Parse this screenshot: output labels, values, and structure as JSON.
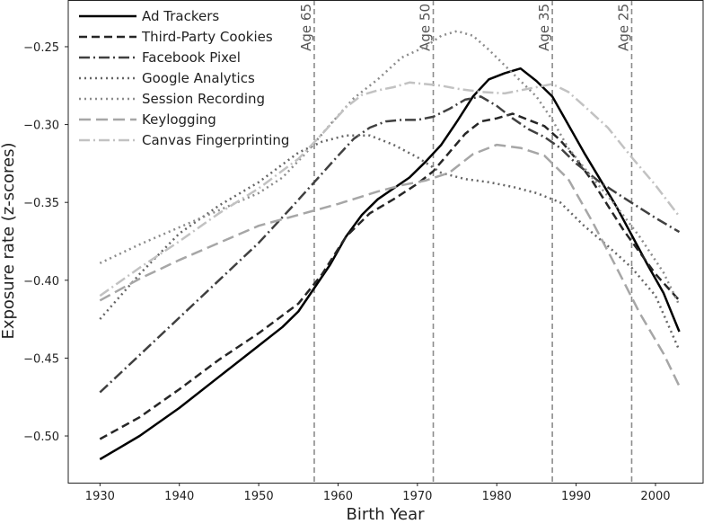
{
  "chart_data": {
    "type": "line",
    "title": "",
    "xlabel": "Birth Year",
    "ylabel": "Exposure rate (z-scores)",
    "xlim": [
      1926,
      2006
    ],
    "ylim": [
      -0.53,
      -0.22
    ],
    "xticks": [
      1930,
      1940,
      1950,
      1960,
      1970,
      1980,
      1990,
      2000
    ],
    "yticks": [
      -0.25,
      -0.3,
      -0.35,
      -0.4,
      -0.45,
      -0.5
    ],
    "ytick_labels": [
      "−0.25",
      "−0.30",
      "−0.35",
      "−0.40",
      "−0.45",
      "−0.50"
    ],
    "grid": false,
    "legend": "top-left",
    "reference_lines": [
      {
        "x": 1957,
        "label": "Age 65"
      },
      {
        "x": 1972,
        "label": "Age 50"
      },
      {
        "x": 1987,
        "label": "Age 35"
      },
      {
        "x": 1997,
        "label": "Age 25"
      }
    ],
    "series": [
      {
        "name": "Ad Trackers",
        "color": "#000000",
        "dash": "",
        "width": 2.5,
        "points": [
          [
            1930,
            -0.515
          ],
          [
            1935,
            -0.5
          ],
          [
            1940,
            -0.482
          ],
          [
            1945,
            -0.462
          ],
          [
            1950,
            -0.442
          ],
          [
            1953,
            -0.43
          ],
          [
            1955,
            -0.42
          ],
          [
            1957,
            -0.405
          ],
          [
            1959,
            -0.39
          ],
          [
            1961,
            -0.372
          ],
          [
            1963,
            -0.358
          ],
          [
            1965,
            -0.348
          ],
          [
            1967,
            -0.341
          ],
          [
            1969,
            -0.334
          ],
          [
            1971,
            -0.324
          ],
          [
            1973,
            -0.313
          ],
          [
            1975,
            -0.298
          ],
          [
            1977,
            -0.282
          ],
          [
            1979,
            -0.271
          ],
          [
            1981,
            -0.267
          ],
          [
            1983,
            -0.264
          ],
          [
            1985,
            -0.272
          ],
          [
            1987,
            -0.282
          ],
          [
            1989,
            -0.3
          ],
          [
            1991,
            -0.318
          ],
          [
            1993,
            -0.335
          ],
          [
            1995,
            -0.352
          ],
          [
            1997,
            -0.371
          ],
          [
            1999,
            -0.39
          ],
          [
            2001,
            -0.408
          ],
          [
            2003,
            -0.433
          ]
        ]
      },
      {
        "name": "Third-Party Cookies",
        "color": "#262626",
        "dash": "9,5",
        "width": 2.5,
        "points": [
          [
            1930,
            -0.502
          ],
          [
            1935,
            -0.488
          ],
          [
            1940,
            -0.47
          ],
          [
            1945,
            -0.451
          ],
          [
            1950,
            -0.434
          ],
          [
            1955,
            -0.415
          ],
          [
            1958,
            -0.396
          ],
          [
            1961,
            -0.372
          ],
          [
            1964,
            -0.357
          ],
          [
            1967,
            -0.348
          ],
          [
            1970,
            -0.338
          ],
          [
            1972,
            -0.33
          ],
          [
            1974,
            -0.318
          ],
          [
            1976,
            -0.306
          ],
          [
            1978,
            -0.298
          ],
          [
            1980,
            -0.296
          ],
          [
            1982,
            -0.293
          ],
          [
            1984,
            -0.297
          ],
          [
            1986,
            -0.301
          ],
          [
            1988,
            -0.31
          ],
          [
            1990,
            -0.322
          ],
          [
            1992,
            -0.336
          ],
          [
            1994,
            -0.352
          ],
          [
            1996,
            -0.368
          ],
          [
            1998,
            -0.382
          ],
          [
            2000,
            -0.396
          ],
          [
            2003,
            -0.413
          ]
        ]
      },
      {
        "name": "Facebook Pixel",
        "color": "#404040",
        "dash": "12,4,2,4",
        "width": 2.5,
        "points": [
          [
            1930,
            -0.472
          ],
          [
            1935,
            -0.448
          ],
          [
            1940,
            -0.424
          ],
          [
            1945,
            -0.4
          ],
          [
            1950,
            -0.376
          ],
          [
            1954,
            -0.354
          ],
          [
            1957,
            -0.337
          ],
          [
            1960,
            -0.32
          ],
          [
            1962,
            -0.309
          ],
          [
            1964,
            -0.302
          ],
          [
            1966,
            -0.298
          ],
          [
            1968,
            -0.297
          ],
          [
            1970,
            -0.297
          ],
          [
            1972,
            -0.295
          ],
          [
            1974,
            -0.29
          ],
          [
            1976,
            -0.284
          ],
          [
            1978,
            -0.282
          ],
          [
            1980,
            -0.288
          ],
          [
            1982,
            -0.296
          ],
          [
            1984,
            -0.303
          ],
          [
            1986,
            -0.308
          ],
          [
            1988,
            -0.315
          ],
          [
            1990,
            -0.325
          ],
          [
            1993,
            -0.337
          ],
          [
            1996,
            -0.347
          ],
          [
            2000,
            -0.36
          ],
          [
            2003,
            -0.369
          ]
        ]
      },
      {
        "name": "Google Analytics",
        "color": "#666666",
        "dash": "2,4",
        "width": 2.5,
        "points": [
          [
            1930,
            -0.425
          ],
          [
            1935,
            -0.396
          ],
          [
            1940,
            -0.37
          ],
          [
            1945,
            -0.352
          ],
          [
            1950,
            -0.337
          ],
          [
            1955,
            -0.318
          ],
          [
            1958,
            -0.311
          ],
          [
            1961,
            -0.307
          ],
          [
            1964,
            -0.307
          ],
          [
            1967,
            -0.313
          ],
          [
            1970,
            -0.321
          ],
          [
            1973,
            -0.331
          ],
          [
            1976,
            -0.335
          ],
          [
            1979,
            -0.337
          ],
          [
            1982,
            -0.34
          ],
          [
            1985,
            -0.344
          ],
          [
            1988,
            -0.35
          ],
          [
            1991,
            -0.365
          ],
          [
            1994,
            -0.378
          ],
          [
            1997,
            -0.392
          ],
          [
            2000,
            -0.41
          ],
          [
            2003,
            -0.445
          ]
        ]
      },
      {
        "name": "Session Recording",
        "color": "#8c8c8c",
        "dash": "2,4",
        "width": 2.5,
        "points": [
          [
            1930,
            -0.389
          ],
          [
            1935,
            -0.377
          ],
          [
            1940,
            -0.366
          ],
          [
            1945,
            -0.355
          ],
          [
            1950,
            -0.344
          ],
          [
            1953,
            -0.334
          ],
          [
            1956,
            -0.318
          ],
          [
            1959,
            -0.3
          ],
          [
            1962,
            -0.283
          ],
          [
            1965,
            -0.271
          ],
          [
            1968,
            -0.257
          ],
          [
            1971,
            -0.25
          ],
          [
            1973,
            -0.243
          ],
          [
            1975,
            -0.24
          ],
          [
            1977,
            -0.243
          ],
          [
            1979,
            -0.252
          ],
          [
            1981,
            -0.262
          ],
          [
            1983,
            -0.272
          ],
          [
            1985,
            -0.282
          ],
          [
            1987,
            -0.297
          ],
          [
            1989,
            -0.315
          ],
          [
            1992,
            -0.334
          ],
          [
            1995,
            -0.352
          ],
          [
            1998,
            -0.372
          ],
          [
            2001,
            -0.395
          ],
          [
            2003,
            -0.416
          ]
        ]
      },
      {
        "name": "Keylogging",
        "color": "#a6a6a6",
        "dash": "13,6",
        "width": 2.5,
        "points": [
          [
            1930,
            -0.413
          ],
          [
            1935,
            -0.399
          ],
          [
            1940,
            -0.387
          ],
          [
            1945,
            -0.376
          ],
          [
            1950,
            -0.365
          ],
          [
            1955,
            -0.358
          ],
          [
            1960,
            -0.351
          ],
          [
            1965,
            -0.343
          ],
          [
            1968,
            -0.339
          ],
          [
            1971,
            -0.336
          ],
          [
            1974,
            -0.331
          ],
          [
            1977,
            -0.319
          ],
          [
            1980,
            -0.313
          ],
          [
            1983,
            -0.315
          ],
          [
            1986,
            -0.32
          ],
          [
            1989,
            -0.335
          ],
          [
            1992,
            -0.362
          ],
          [
            1995,
            -0.391
          ],
          [
            1998,
            -0.421
          ],
          [
            2001,
            -0.447
          ],
          [
            2003,
            -0.468
          ]
        ]
      },
      {
        "name": "Canvas Fingerprinting",
        "color": "#c2c2c2",
        "dash": "12,4,2,4",
        "width": 2.5,
        "points": [
          [
            1930,
            -0.41
          ],
          [
            1935,
            -0.392
          ],
          [
            1940,
            -0.375
          ],
          [
            1945,
            -0.357
          ],
          [
            1950,
            -0.341
          ],
          [
            1955,
            -0.322
          ],
          [
            1958,
            -0.306
          ],
          [
            1961,
            -0.289
          ],
          [
            1963,
            -0.281
          ],
          [
            1965,
            -0.278
          ],
          [
            1967,
            -0.276
          ],
          [
            1969,
            -0.273
          ],
          [
            1971,
            -0.274
          ],
          [
            1973,
            -0.275
          ],
          [
            1975,
            -0.277
          ],
          [
            1978,
            -0.279
          ],
          [
            1981,
            -0.28
          ],
          [
            1984,
            -0.277
          ],
          [
            1987,
            -0.274
          ],
          [
            1989,
            -0.279
          ],
          [
            1991,
            -0.288
          ],
          [
            1994,
            -0.302
          ],
          [
            1997,
            -0.321
          ],
          [
            2000,
            -0.339
          ],
          [
            2003,
            -0.359
          ]
        ]
      }
    ]
  }
}
